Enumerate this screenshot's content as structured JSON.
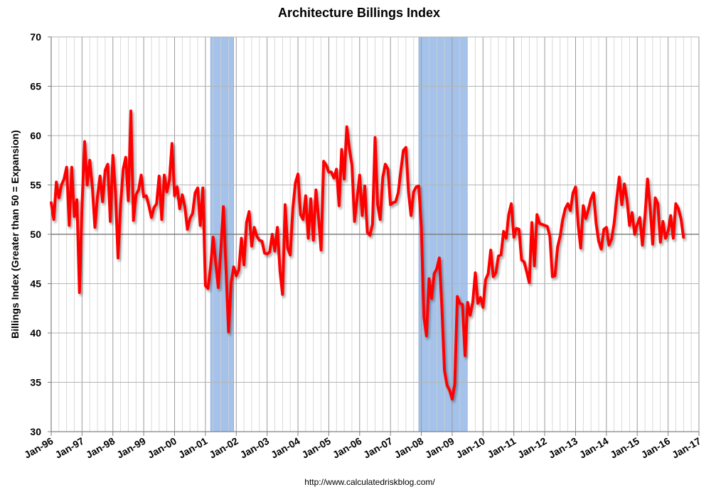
{
  "chart_data": {
    "type": "line",
    "title": "Architecture Billings Index",
    "ylabel": "Billings Index (Greater than 50 = Expansion)",
    "xlabel": "",
    "source": "http://www.calculatedriskblog.com/",
    "ylim": [
      30,
      70
    ],
    "yticks": [
      30,
      35,
      40,
      45,
      50,
      55,
      60,
      65,
      70
    ],
    "reference_line": 50,
    "x_start": "Jan-96",
    "x_end": "Jan-17",
    "xtick_labels": [
      "Jan-96",
      "Jan-97",
      "Jan-98",
      "Jan-99",
      "Jan-00",
      "Jan-01",
      "Jan-02",
      "Jan-03",
      "Jan-04",
      "Jan-05",
      "Jan-06",
      "Jan-07",
      "Jan-08",
      "Jan-09",
      "Jan-10",
      "Jan-11",
      "Jan-12",
      "Jan-13",
      "Jan-14",
      "Jan-15",
      "Jan-16",
      "Jan-17"
    ],
    "grid": true,
    "recessions": [
      {
        "start": "Mar-01",
        "end": "Nov-01"
      },
      {
        "start": "Dec-07",
        "end": "Jun-09"
      }
    ],
    "colors": {
      "line": "#ff0000",
      "recession": "#a4c2ea",
      "grid": "#b0b0b0",
      "reference": "#7f7f7f"
    },
    "series": [
      {
        "first_month": "Jan-96",
        "values": [
          53.2,
          51.5,
          55.3,
          53.7,
          55.0,
          55.6,
          56.8,
          50.9,
          56.8,
          51.8,
          53.5,
          44.1,
          53.0,
          59.4,
          55.0,
          57.5,
          54.8,
          50.7,
          53.8,
          55.9,
          53.3,
          56.5,
          57.1,
          51.3,
          58.0,
          54.3,
          47.6,
          53.0,
          56.6,
          57.8,
          53.4,
          62.5,
          51.4,
          54.0,
          54.5,
          56.0,
          53.8,
          53.9,
          52.9,
          51.7,
          52.7,
          53.1,
          55.9,
          51.5,
          56.0,
          54.3,
          55.5,
          59.2,
          53.9,
          54.8,
          52.6,
          54.0,
          52.8,
          50.5,
          51.6,
          52.1,
          54.2,
          54.7,
          50.9,
          54.7,
          44.8,
          44.5,
          46.7,
          49.7,
          47.1,
          44.6,
          48.5,
          52.8,
          46.5,
          40.1,
          45.1,
          46.7,
          45.8,
          46.4,
          49.6,
          46.9,
          51.2,
          52.3,
          48.8,
          50.7,
          49.8,
          49.4,
          49.3,
          48.1,
          48.0,
          48.2,
          50.0,
          48.3,
          50.7,
          46.3,
          43.9,
          53.0,
          48.6,
          47.9,
          52.6,
          55.2,
          56.1,
          52.0,
          51.5,
          53.9,
          49.6,
          53.6,
          49.4,
          54.5,
          51.7,
          48.4,
          57.4,
          57.0,
          56.3,
          56.3,
          55.7,
          56.6,
          52.9,
          58.6,
          55.6,
          60.9,
          58.7,
          57.0,
          51.3,
          53.6,
          56.0,
          51.9,
          54.9,
          50.2,
          49.9,
          51.0,
          59.8,
          53.0,
          51.5,
          55.8,
          57.1,
          56.6,
          53.0,
          53.2,
          53.3,
          54.2,
          56.4,
          58.5,
          58.8,
          54.3,
          51.9,
          54.3,
          54.8,
          54.9,
          50.7,
          41.6,
          39.7,
          45.5,
          43.5,
          46.0,
          46.5,
          47.6,
          42.6,
          36.2,
          34.7,
          34.2,
          33.3,
          34.8,
          43.7,
          43.0,
          42.9,
          37.7,
          43.1,
          41.8,
          43.1,
          46.1,
          43.0,
          43.6,
          42.6,
          45.4,
          46.0,
          48.4,
          45.7,
          46.1,
          47.8,
          47.9,
          50.3,
          49.6,
          52.0,
          53.1,
          49.7,
          50.6,
          50.5,
          47.4,
          47.2,
          46.2,
          45.1,
          51.2,
          46.8,
          52.0,
          51.1,
          51.0,
          50.9,
          50.8,
          49.8,
          45.7,
          45.8,
          48.7,
          49.8,
          51.5,
          52.6,
          53.1,
          52.4,
          54.2,
          54.8,
          51.0,
          48.6,
          52.9,
          51.6,
          52.5,
          53.6,
          54.2,
          51.1,
          49.3,
          48.5,
          50.5,
          50.7,
          48.9,
          49.5,
          51.1,
          53.6,
          55.8,
          53.0,
          55.1,
          53.5,
          50.9,
          52.2,
          50.0,
          51.0,
          51.7,
          48.9,
          51.8,
          55.6,
          52.8,
          49.0,
          53.7,
          53.1,
          49.2,
          51.3,
          49.6,
          50.3,
          51.9,
          49.6,
          53.1,
          52.6,
          51.6,
          49.7
        ]
      }
    ]
  }
}
